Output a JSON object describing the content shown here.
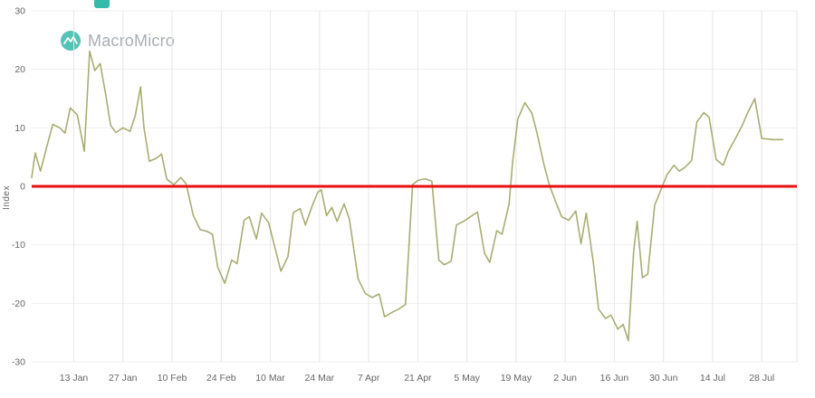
{
  "logo": {
    "text": "MacroMicro",
    "brand_color": "#35b9a9",
    "text_color": "#9ba1a6"
  },
  "fragment_color": "#35b9a9",
  "chart_data": {
    "type": "line",
    "title": "",
    "xlabel": "",
    "ylabel": "Index",
    "ylim": [
      -30,
      30
    ],
    "xlim_days": [
      0,
      218
    ],
    "grid": "on",
    "legend": "none",
    "y_ticks": [
      30,
      20,
      10,
      0,
      -10,
      -20,
      -30
    ],
    "x_ticks": [
      {
        "label": "13 Jan",
        "day": 12
      },
      {
        "label": "27 Jan",
        "day": 26
      },
      {
        "label": "10 Feb",
        "day": 40
      },
      {
        "label": "24 Feb",
        "day": 54
      },
      {
        "label": "10 Mar",
        "day": 68
      },
      {
        "label": "24 Mar",
        "day": 82
      },
      {
        "label": "7 Apr",
        "day": 96
      },
      {
        "label": "21 Apr",
        "day": 110
      },
      {
        "label": "5 May",
        "day": 124
      },
      {
        "label": "19 May",
        "day": 138
      },
      {
        "label": "2 Jun",
        "day": 152
      },
      {
        "label": "16 Jun",
        "day": 166
      },
      {
        "label": "30 Jun",
        "day": 180
      },
      {
        "label": "14 Jul",
        "day": 194
      },
      {
        "label": "28 Jul",
        "day": 208
      }
    ],
    "reference_line": {
      "value": 0,
      "color": "#e81010",
      "width": 3
    },
    "series": [
      {
        "name": "Index",
        "color": "#a9ad74",
        "width": 1.6,
        "points": [
          [
            0,
            1.5
          ],
          [
            1,
            5.7
          ],
          [
            2.5,
            2.6
          ],
          [
            4.5,
            7.2
          ],
          [
            6,
            10.6
          ],
          [
            8,
            10.0
          ],
          [
            9.5,
            9.1
          ],
          [
            11,
            13.4
          ],
          [
            13,
            12.2
          ],
          [
            15,
            6.0
          ],
          [
            16.5,
            23.1
          ],
          [
            18,
            19.8
          ],
          [
            19.5,
            21.0
          ],
          [
            21,
            16.0
          ],
          [
            22.5,
            10.4
          ],
          [
            24,
            9.2
          ],
          [
            26,
            10.0
          ],
          [
            28,
            9.4
          ],
          [
            29.5,
            12.0
          ],
          [
            31,
            17.0
          ],
          [
            32,
            10.0
          ],
          [
            33.5,
            4.3
          ],
          [
            35.5,
            4.8
          ],
          [
            37,
            5.5
          ],
          [
            38.5,
            1.2
          ],
          [
            40.5,
            0.3
          ],
          [
            42.5,
            1.5
          ],
          [
            44,
            0.4
          ],
          [
            46,
            -4.9
          ],
          [
            48,
            -7.4
          ],
          [
            50,
            -7.7
          ],
          [
            51.5,
            -8.2
          ],
          [
            53,
            -13.8
          ],
          [
            55,
            -16.6
          ],
          [
            57,
            -12.6
          ],
          [
            58.5,
            -13.2
          ],
          [
            60.5,
            -5.8
          ],
          [
            62,
            -5.2
          ],
          [
            64,
            -9.0
          ],
          [
            65.5,
            -4.6
          ],
          [
            67.5,
            -6.2
          ],
          [
            69,
            -9.8
          ],
          [
            71,
            -14.5
          ],
          [
            73,
            -12.0
          ],
          [
            74.5,
            -4.5
          ],
          [
            76.5,
            -3.8
          ],
          [
            78,
            -6.6
          ],
          [
            80,
            -3.2
          ],
          [
            81.5,
            -1.0
          ],
          [
            82.5,
            -0.6
          ],
          [
            84,
            -5.0
          ],
          [
            85.5,
            -3.6
          ],
          [
            87,
            -6.0
          ],
          [
            89,
            -3.0
          ],
          [
            90.5,
            -5.6
          ],
          [
            93,
            -15.8
          ],
          [
            95,
            -18.3
          ],
          [
            97,
            -19.0
          ],
          [
            99,
            -18.4
          ],
          [
            100.5,
            -22.3
          ],
          [
            102.5,
            -21.6
          ],
          [
            104.5,
            -21.0
          ],
          [
            106.5,
            -20.2
          ],
          [
            108.5,
            0.3
          ],
          [
            110,
            1.0
          ],
          [
            112,
            1.3
          ],
          [
            114,
            0.9
          ],
          [
            116,
            -12.6
          ],
          [
            117.5,
            -13.4
          ],
          [
            119.5,
            -12.8
          ],
          [
            121,
            -6.6
          ],
          [
            123,
            -6.0
          ],
          [
            125,
            -5.2
          ],
          [
            127,
            -4.4
          ],
          [
            129,
            -11.4
          ],
          [
            130.5,
            -13.0
          ],
          [
            132.5,
            -7.6
          ],
          [
            134,
            -8.2
          ],
          [
            136,
            -3.0
          ],
          [
            137,
            4.0
          ],
          [
            138.5,
            11.5
          ],
          [
            140.5,
            14.3
          ],
          [
            142.5,
            12.5
          ],
          [
            144,
            9.0
          ],
          [
            146,
            3.6
          ],
          [
            147.5,
            0.2
          ],
          [
            149.5,
            -3.0
          ],
          [
            151,
            -5.2
          ],
          [
            153,
            -5.8
          ],
          [
            155,
            -4.2
          ],
          [
            156.5,
            -9.8
          ],
          [
            158,
            -4.6
          ],
          [
            160,
            -13.0
          ],
          [
            161.5,
            -21.0
          ],
          [
            163.5,
            -22.6
          ],
          [
            165,
            -22.0
          ],
          [
            167,
            -24.4
          ],
          [
            168.5,
            -23.6
          ],
          [
            170,
            -26.4
          ],
          [
            171.5,
            -11.0
          ],
          [
            172.5,
            -6.0
          ],
          [
            174,
            -15.6
          ],
          [
            175.5,
            -15.0
          ],
          [
            177.5,
            -3.2
          ],
          [
            179,
            -1.0
          ],
          [
            181,
            2.0
          ],
          [
            183,
            3.6
          ],
          [
            184.5,
            2.6
          ],
          [
            186,
            3.2
          ],
          [
            188,
            4.4
          ],
          [
            189.5,
            11.0
          ],
          [
            191.5,
            12.6
          ],
          [
            193,
            11.8
          ],
          [
            195,
            4.6
          ],
          [
            197,
            3.6
          ],
          [
            198.5,
            6.0
          ],
          [
            200.5,
            8.2
          ],
          [
            202.5,
            10.5
          ],
          [
            204,
            12.6
          ],
          [
            206,
            15.0
          ],
          [
            208,
            8.2
          ],
          [
            211,
            8.0
          ],
          [
            214,
            8.0
          ]
        ]
      }
    ]
  }
}
